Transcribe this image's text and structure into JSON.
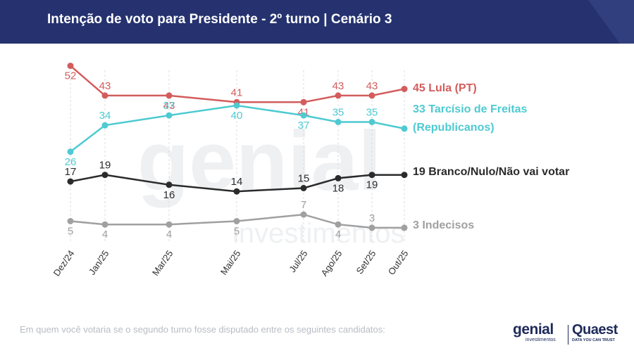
{
  "header": {
    "title": "Intenção de voto para Presidente - 2º turno | Cenário 3",
    "bg_color": "#25326f",
    "accent_color": "#3a4788"
  },
  "chart_data": {
    "type": "line",
    "categories": [
      "Dez/24",
      "Jan/25",
      "Mar/25",
      "Mai/25",
      "Jul/25",
      "Ago/25",
      "Set/25",
      "Out/25"
    ],
    "grid": "vertical dashed",
    "series": [
      {
        "name": "Lula (PT)",
        "end_label_lines": [
          "45 Lula (PT)"
        ],
        "color": "#d35c5c",
        "values": [
          52,
          43,
          43,
          41,
          41,
          43,
          43,
          45
        ],
        "point_labels": [
          "52",
          "43",
          "43",
          "41",
          "41",
          "43",
          "43",
          ""
        ],
        "label_pos": [
          "below",
          "above",
          "below",
          "above",
          "below",
          "above",
          "above",
          "none"
        ]
      },
      {
        "name": "Tarcísio de Freitas (Republicanos)",
        "end_label_lines": [
          "33 Tarcísio de Freitas",
          "(Republicanos)"
        ],
        "color": "#4ecad1",
        "values": [
          26,
          34,
          37,
          40,
          37,
          35,
          35,
          33
        ],
        "point_labels": [
          "26",
          "34",
          "37",
          "40",
          "37",
          "35",
          "35",
          ""
        ],
        "label_pos": [
          "below",
          "above",
          "above",
          "below",
          "below",
          "above",
          "above",
          "none"
        ]
      },
      {
        "name": "Branco/Nulo/Não vai votar",
        "end_label_lines": [
          "19 Branco/Nulo/Não vai votar"
        ],
        "color": "#2b2b2b",
        "values": [
          17,
          19,
          16,
          14,
          15,
          18,
          19,
          19
        ],
        "point_labels": [
          "17",
          "19",
          "16",
          "14",
          "15",
          "18",
          "19",
          ""
        ],
        "label_pos": [
          "above",
          "above",
          "below",
          "above",
          "above",
          "below",
          "below",
          "none"
        ]
      },
      {
        "name": "Indecisos",
        "end_label_lines": [
          "3 Indecisos"
        ],
        "color": "#a0a0a0",
        "values": [
          5,
          4,
          4,
          5,
          7,
          4,
          3,
          3
        ],
        "point_labels": [
          "5",
          "4",
          "4",
          "5",
          "7",
          "4",
          "3",
          ""
        ],
        "label_pos": [
          "below",
          "below",
          "below",
          "below",
          "above",
          "below",
          "above",
          "none"
        ]
      }
    ]
  },
  "watermark": {
    "word": "genial",
    "sub": "investimentos"
  },
  "footer": {
    "note": "Em quem você votaria se o segundo turno fosse disputado entre os seguintes candidatos:",
    "logo_genial": "genial",
    "logo_genial_sub": "investimentos",
    "logo_quaest": "Quaest",
    "logo_quaest_sub": "DATA YOU CAN TRUST"
  }
}
